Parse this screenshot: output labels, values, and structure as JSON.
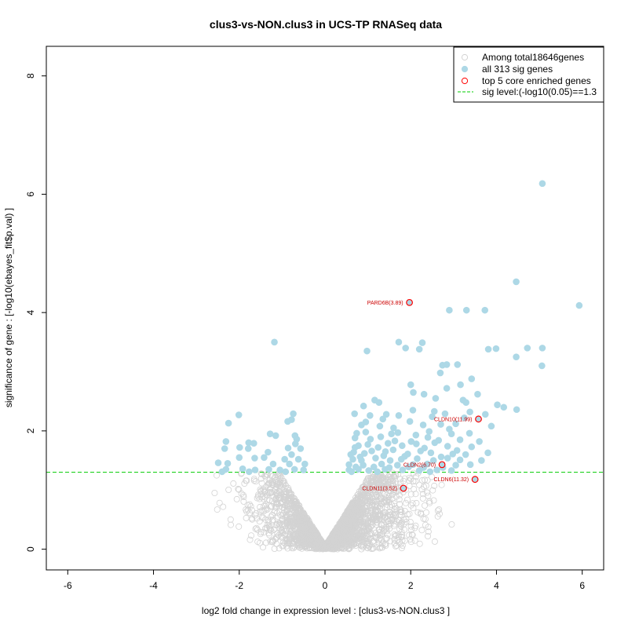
{
  "chart_data": {
    "type": "scatter",
    "title": "clus3-vs-NON.clus3 in UCS-TP RNASeq data",
    "xlabel": "log2 fold change in expression level : [clus3-vs-NON.clus3 ]",
    "ylabel": "significance of gene : [-log10(ebayes_fit$p.val) ]",
    "xlim": [
      -6.5,
      6.5
    ],
    "ylim": [
      -0.35,
      8.5
    ],
    "x_ticks": [
      -6,
      -4,
      -2,
      0,
      2,
      4,
      6
    ],
    "y_ticks": [
      0,
      2,
      4,
      6,
      8
    ],
    "threshold": 1.3,
    "legend": {
      "position": "top-right",
      "entries": [
        {
          "label": "Among total18646genes",
          "symbol": "open-circle",
          "color": "#d3d3d3"
        },
        {
          "label": "all 313 sig genes",
          "symbol": "filled-circle",
          "color": "#add8e6"
        },
        {
          "label": "top 5 core enriched genes",
          "symbol": "open-circle",
          "color": "#ff0000"
        },
        {
          "label": "sig level:(-log10(0.05)==1.3",
          "symbol": "dashed-line",
          "color": "#00cc00"
        }
      ]
    },
    "colors": {
      "nonsig": "#d3d3d3",
      "sig": "#add8e6",
      "top": "#ff0000",
      "threshold_line": "#00cc00",
      "gene_label": "#cc0000"
    },
    "top_genes": [
      {
        "label": "PARD6B(3.89)",
        "x": 1.97,
        "y": 4.17
      },
      {
        "label": "CLDN10(11.99)",
        "x": 3.58,
        "y": 2.2
      },
      {
        "label": "CLDN2(6.70)",
        "x": 2.73,
        "y": 1.43
      },
      {
        "label": "CLDN6(11.32)",
        "x": 3.5,
        "y": 1.18
      },
      {
        "label": "CLDN11(3.52)",
        "x": 1.83,
        "y": 1.03
      }
    ],
    "sig_genes": [
      [
        5.07,
        6.18
      ],
      [
        4.46,
        4.52
      ],
      [
        5.93,
        4.12
      ],
      [
        3.3,
        4.04
      ],
      [
        2.9,
        4.04
      ],
      [
        3.73,
        4.04
      ],
      [
        -1.18,
        3.5
      ],
      [
        1.72,
        3.5
      ],
      [
        2.27,
        3.49
      ],
      [
        1.88,
        3.4
      ],
      [
        2.2,
        3.38
      ],
      [
        3.81,
        3.38
      ],
      [
        3.99,
        3.39
      ],
      [
        4.72,
        3.4
      ],
      [
        5.07,
        3.4
      ],
      [
        0.98,
        3.35
      ],
      [
        4.46,
        3.25
      ],
      [
        2.74,
        3.11
      ],
      [
        2.84,
        3.12
      ],
      [
        3.09,
        3.12
      ],
      [
        5.06,
        3.1
      ],
      [
        2.0,
        2.78
      ],
      [
        2.69,
        2.98
      ],
      [
        3.16,
        2.78
      ],
      [
        3.42,
        2.88
      ],
      [
        2.06,
        2.65
      ],
      [
        2.31,
        2.62
      ],
      [
        2.58,
        2.55
      ],
      [
        2.84,
        2.72
      ],
      [
        3.22,
        2.52
      ],
      [
        3.56,
        2.62
      ],
      [
        3.29,
        2.48
      ],
      [
        1.16,
        2.52
      ],
      [
        1.26,
        2.48
      ],
      [
        0.9,
        2.42
      ],
      [
        4.02,
        2.44
      ],
      [
        4.17,
        2.4
      ],
      [
        4.47,
        2.36
      ],
      [
        3.74,
        2.28
      ],
      [
        3.38,
        2.32
      ],
      [
        2.55,
        2.33
      ],
      [
        2.8,
        2.29
      ],
      [
        1.72,
        2.26
      ],
      [
        1.43,
        2.28
      ],
      [
        1.05,
        2.26
      ],
      [
        0.69,
        2.29
      ],
      [
        -2.01,
        2.27
      ],
      [
        -0.74,
        2.29
      ],
      [
        -2.25,
        2.13
      ],
      [
        -0.78,
        2.19
      ],
      [
        -0.87,
        2.16
      ],
      [
        0.85,
        2.1
      ],
      [
        1.28,
        2.08
      ],
      [
        1.98,
        2.16
      ],
      [
        2.29,
        2.1
      ],
      [
        2.7,
        2.11
      ],
      [
        3.05,
        2.12
      ],
      [
        3.88,
        2.08
      ],
      [
        0.74,
        1.96
      ],
      [
        0.95,
        1.98
      ],
      [
        1.55,
        1.95
      ],
      [
        2.12,
        1.93
      ],
      [
        2.43,
        1.99
      ],
      [
        2.95,
        1.95
      ],
      [
        3.37,
        1.96
      ],
      [
        -1.28,
        1.95
      ],
      [
        -1.15,
        1.92
      ],
      [
        -0.7,
        1.92
      ],
      [
        -0.66,
        1.86
      ],
      [
        -2.31,
        1.82
      ],
      [
        -1.78,
        1.8
      ],
      [
        -1.66,
        1.79
      ],
      [
        -0.69,
        1.78
      ],
      [
        0.7,
        1.88
      ],
      [
        1.06,
        1.86
      ],
      [
        1.63,
        1.83
      ],
      [
        2.01,
        1.82
      ],
      [
        2.65,
        1.84
      ],
      [
        3.15,
        1.85
      ],
      [
        3.6,
        1.82
      ],
      [
        0.78,
        1.75
      ],
      [
        1.24,
        1.72
      ],
      [
        1.8,
        1.75
      ],
      [
        2.32,
        1.71
      ],
      [
        2.86,
        1.74
      ],
      [
        3.42,
        1.73
      ],
      [
        -2.34,
        1.7
      ],
      [
        -1.99,
        1.72
      ],
      [
        -1.79,
        1.7
      ],
      [
        -0.86,
        1.71
      ],
      [
        -0.57,
        1.7
      ],
      [
        -1.33,
        1.64
      ],
      [
        -0.78,
        1.6
      ],
      [
        0.67,
        1.64
      ],
      [
        0.92,
        1.62
      ],
      [
        1.41,
        1.65
      ],
      [
        1.93,
        1.61
      ],
      [
        2.47,
        1.63
      ],
      [
        2.98,
        1.61
      ],
      [
        3.28,
        1.6
      ],
      [
        3.8,
        1.63
      ],
      [
        -2.0,
        1.55
      ],
      [
        -1.64,
        1.54
      ],
      [
        -1.42,
        1.55
      ],
      [
        -0.94,
        1.52
      ],
      [
        -0.62,
        1.52
      ],
      [
        0.65,
        1.52
      ],
      [
        0.85,
        1.5
      ],
      [
        1.18,
        1.54
      ],
      [
        1.52,
        1.5
      ],
      [
        1.78,
        1.52
      ],
      [
        2.15,
        1.53
      ],
      [
        2.53,
        1.5
      ],
      [
        2.86,
        1.54
      ],
      [
        3.15,
        1.51
      ],
      [
        3.65,
        1.5
      ],
      [
        -2.49,
        1.46
      ],
      [
        -2.27,
        1.45
      ],
      [
        -1.21,
        1.44
      ],
      [
        -0.83,
        1.44
      ],
      [
        -0.47,
        1.44
      ],
      [
        0.56,
        1.43
      ],
      [
        0.89,
        1.42
      ],
      [
        1.32,
        1.44
      ],
      [
        1.69,
        1.42
      ],
      [
        2.05,
        1.43
      ],
      [
        2.39,
        1.44
      ],
      [
        3.05,
        1.42
      ],
      [
        3.39,
        1.43
      ],
      [
        -2.31,
        1.35
      ],
      [
        -1.92,
        1.36
      ],
      [
        -1.63,
        1.34
      ],
      [
        -1.31,
        1.35
      ],
      [
        -1.05,
        1.34
      ],
      [
        -0.71,
        1.35
      ],
      [
        -0.5,
        1.34
      ],
      [
        0.56,
        1.34
      ],
      [
        0.78,
        1.35
      ],
      [
        1.02,
        1.33
      ],
      [
        1.4,
        1.35
      ],
      [
        1.81,
        1.34
      ],
      [
        2.2,
        1.33
      ],
      [
        2.61,
        1.34
      ],
      [
        2.95,
        1.33
      ],
      [
        -2.4,
        1.31
      ],
      [
        -1.77,
        1.31
      ],
      [
        -0.92,
        1.31
      ],
      [
        0.62,
        1.31
      ],
      [
        1.22,
        1.31
      ],
      [
        2.45,
        1.31
      ],
      [
        0.82,
        1.56
      ],
      [
        1.09,
        1.66
      ],
      [
        1.37,
        1.58
      ],
      [
        1.59,
        1.68
      ],
      [
        1.86,
        1.57
      ],
      [
        2.23,
        1.66
      ],
      [
        2.71,
        1.56
      ],
      [
        3.08,
        1.67
      ],
      [
        0.7,
        1.72
      ],
      [
        1.0,
        1.77
      ],
      [
        1.47,
        1.79
      ],
      [
        2.13,
        1.78
      ],
      [
        2.56,
        1.8
      ],
      [
        0.6,
        1.6
      ],
      [
        1.14,
        1.39
      ],
      [
        1.5,
        1.38
      ],
      [
        1.95,
        1.39
      ],
      [
        2.3,
        1.38
      ],
      [
        2.75,
        1.38
      ],
      [
        0.72,
        1.39
      ],
      [
        1.3,
        1.9
      ],
      [
        1.7,
        1.97
      ],
      [
        2.4,
        1.89
      ],
      [
        2.9,
        2.03
      ],
      [
        3.25,
        2.22
      ],
      [
        2.05,
        2.35
      ],
      [
        1.6,
        2.05
      ],
      [
        0.95,
        2.15
      ],
      [
        1.35,
        2.2
      ],
      [
        2.5,
        2.24
      ]
    ]
  }
}
